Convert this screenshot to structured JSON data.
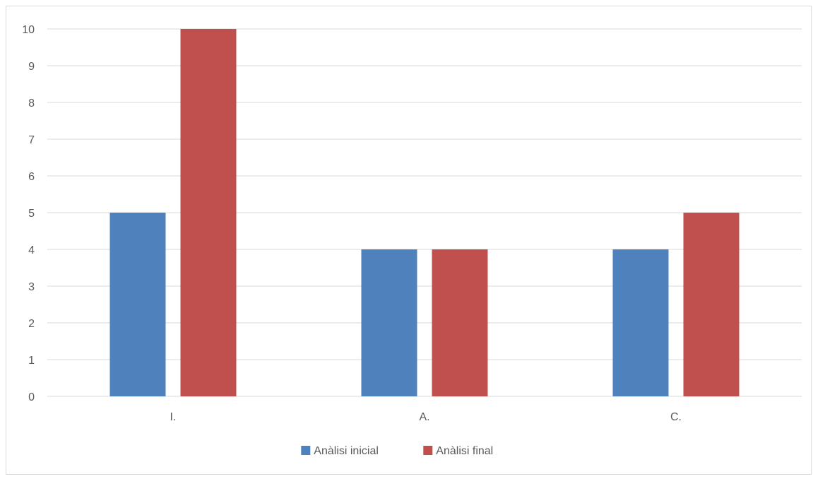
{
  "chart_data": {
    "type": "bar",
    "title": "",
    "xlabel": "",
    "ylabel": "",
    "categories": [
      "I.",
      "A.",
      "C."
    ],
    "series": [
      {
        "name": "Anàlisi inicial",
        "color": "#4f81bd",
        "values": [
          5,
          4,
          4
        ]
      },
      {
        "name": "Anàlisi final",
        "color": "#c0504d",
        "values": [
          10,
          4,
          5
        ]
      }
    ],
    "ylim": [
      0,
      10
    ],
    "yticks": [
      0,
      1,
      2,
      3,
      4,
      5,
      6,
      7,
      8,
      9,
      10
    ],
    "grid": true,
    "legend_position": "bottom"
  }
}
